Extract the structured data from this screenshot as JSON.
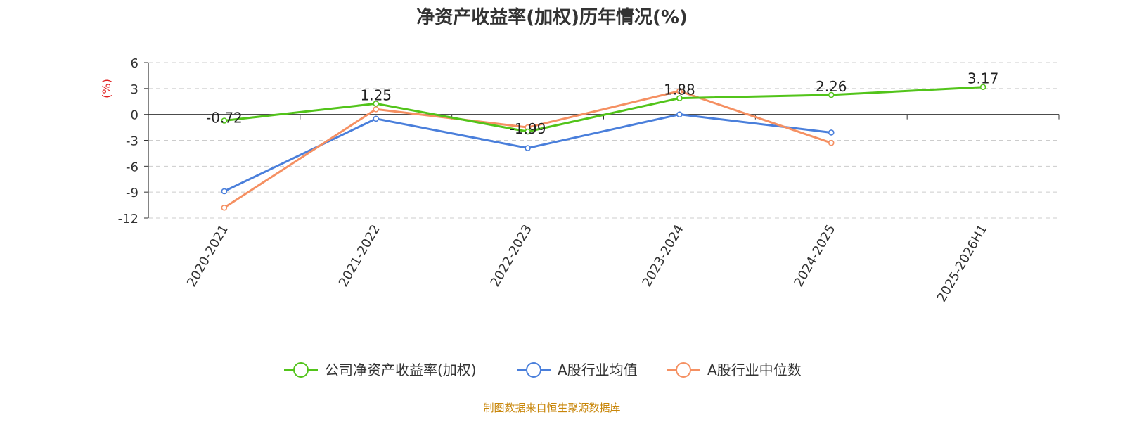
{
  "chart_data": {
    "type": "line",
    "title": "净资产收益率(加权)历年情况(%)",
    "ylabel": "(%)",
    "xlabel": "",
    "categories": [
      "2020-2021",
      "2021-2022",
      "2022-2023",
      "2023-2024",
      "2024-2025",
      "2025-2026H1"
    ],
    "ylim": [
      -12,
      6
    ],
    "yticks": [
      6,
      3,
      0,
      -3,
      -6,
      -9,
      -12
    ],
    "grid": true,
    "legend_position": "bottom",
    "series": [
      {
        "name": "公司净资产收益率(加权)",
        "color": "#52c41a",
        "values": [
          -0.72,
          1.25,
          -1.99,
          1.88,
          2.26,
          3.17
        ],
        "labels": [
          "-0.72",
          "1.25",
          "-1.99",
          "1.88",
          "2.26",
          "3.17"
        ]
      },
      {
        "name": "A股行业均值",
        "color": "#4a7fdb",
        "values": [
          -8.9,
          -0.5,
          -3.9,
          0.0,
          -2.1,
          null
        ]
      },
      {
        "name": "A股行业中位数",
        "color": "#f59062",
        "values": [
          -10.8,
          0.6,
          -1.5,
          2.7,
          -3.3,
          null
        ]
      }
    ],
    "source": "制图数据来自恒生聚源数据库",
    "unit_color": "#e02020",
    "source_color": "#c8860a"
  }
}
